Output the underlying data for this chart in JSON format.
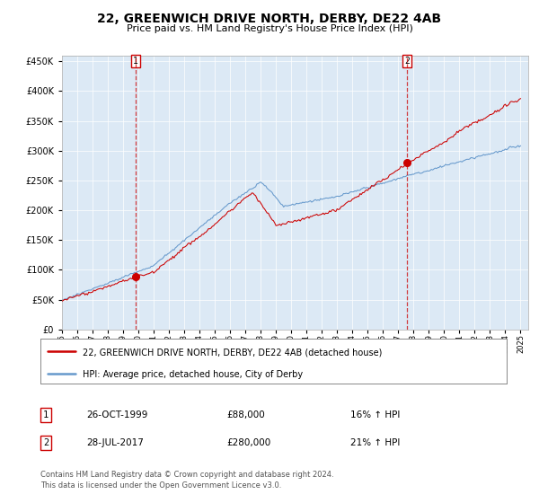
{
  "title": "22, GREENWICH DRIVE NORTH, DERBY, DE22 4AB",
  "subtitle": "Price paid vs. HM Land Registry's House Price Index (HPI)",
  "plot_bg_color": "#dce9f5",
  "red_line_color": "#cc0000",
  "blue_line_color": "#6699cc",
  "marker_color": "#cc0000",
  "vline_color": "#cc0000",
  "legend_label_red": "22, GREENWICH DRIVE NORTH, DERBY, DE22 4AB (detached house)",
  "legend_label_blue": "HPI: Average price, detached house, City of Derby",
  "sale1_date": "26-OCT-1999",
  "sale1_price": 88000,
  "sale1_hpi_change": "16%",
  "sale2_date": "28-JUL-2017",
  "sale2_price": 280000,
  "sale2_hpi_change": "21%",
  "footer1": "Contains HM Land Registry data © Crown copyright and database right 2024.",
  "footer2": "This data is licensed under the Open Government Licence v3.0.",
  "ylim": [
    0,
    460000
  ],
  "yticks": [
    0,
    50000,
    100000,
    150000,
    200000,
    250000,
    300000,
    350000,
    400000,
    450000
  ],
  "ytick_labels": [
    "£0",
    "£50K",
    "£100K",
    "£150K",
    "£200K",
    "£250K",
    "£300K",
    "£350K",
    "£400K",
    "£450K"
  ],
  "sale1_year": 1999.82,
  "sale2_year": 2017.57
}
